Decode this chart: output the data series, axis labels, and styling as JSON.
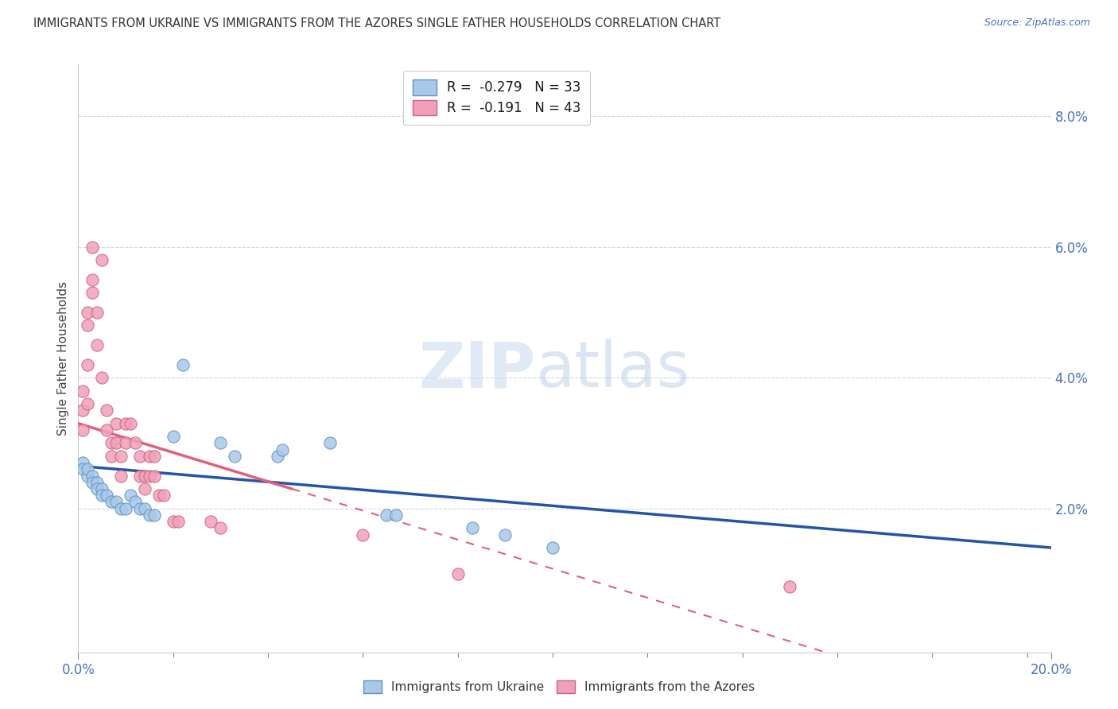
{
  "title": "IMMIGRANTS FROM UKRAINE VS IMMIGRANTS FROM THE AZORES SINGLE FATHER HOUSEHOLDS CORRELATION CHART",
  "source": "Source: ZipAtlas.com",
  "ylabel": "Single Father Households",
  "legend_ukraine": "R =  -0.279   N = 33",
  "legend_azores": "R =  -0.191   N = 43",
  "watermark_zip": "ZIP",
  "watermark_atlas": "atlas",
  "ukraine_color": "#a8c8e8",
  "ukraine_edge": "#6090c8",
  "azores_color": "#f0a0b8",
  "azores_edge": "#d06080",
  "ukraine_line_color": "#2255aa",
  "azores_line_color": "#e06080",
  "background_color": "#ffffff",
  "ukraine_scatter": [
    [
      0.001,
      0.027
    ],
    [
      0.001,
      0.026
    ],
    [
      0.002,
      0.025
    ],
    [
      0.002,
      0.026
    ],
    [
      0.003,
      0.025
    ],
    [
      0.003,
      0.024
    ],
    [
      0.004,
      0.024
    ],
    [
      0.004,
      0.023
    ],
    [
      0.005,
      0.023
    ],
    [
      0.005,
      0.022
    ],
    [
      0.006,
      0.022
    ],
    [
      0.007,
      0.021
    ],
    [
      0.008,
      0.021
    ],
    [
      0.009,
      0.02
    ],
    [
      0.01,
      0.02
    ],
    [
      0.011,
      0.022
    ],
    [
      0.012,
      0.021
    ],
    [
      0.013,
      0.02
    ],
    [
      0.014,
      0.02
    ],
    [
      0.015,
      0.019
    ],
    [
      0.016,
      0.019
    ],
    [
      0.02,
      0.031
    ],
    [
      0.022,
      0.042
    ],
    [
      0.03,
      0.03
    ],
    [
      0.033,
      0.028
    ],
    [
      0.042,
      0.028
    ],
    [
      0.043,
      0.029
    ],
    [
      0.053,
      0.03
    ],
    [
      0.065,
      0.019
    ],
    [
      0.067,
      0.019
    ],
    [
      0.083,
      0.017
    ],
    [
      0.09,
      0.016
    ],
    [
      0.1,
      0.014
    ]
  ],
  "azores_scatter": [
    [
      0.001,
      0.035
    ],
    [
      0.001,
      0.038
    ],
    [
      0.001,
      0.032
    ],
    [
      0.002,
      0.05
    ],
    [
      0.002,
      0.042
    ],
    [
      0.002,
      0.048
    ],
    [
      0.002,
      0.036
    ],
    [
      0.003,
      0.055
    ],
    [
      0.003,
      0.06
    ],
    [
      0.003,
      0.053
    ],
    [
      0.004,
      0.045
    ],
    [
      0.004,
      0.05
    ],
    [
      0.005,
      0.058
    ],
    [
      0.005,
      0.04
    ],
    [
      0.006,
      0.035
    ],
    [
      0.006,
      0.032
    ],
    [
      0.007,
      0.03
    ],
    [
      0.007,
      0.028
    ],
    [
      0.008,
      0.033
    ],
    [
      0.008,
      0.03
    ],
    [
      0.009,
      0.028
    ],
    [
      0.009,
      0.025
    ],
    [
      0.01,
      0.033
    ],
    [
      0.01,
      0.03
    ],
    [
      0.011,
      0.033
    ],
    [
      0.012,
      0.03
    ],
    [
      0.013,
      0.025
    ],
    [
      0.013,
      0.028
    ],
    [
      0.014,
      0.025
    ],
    [
      0.014,
      0.023
    ],
    [
      0.015,
      0.028
    ],
    [
      0.015,
      0.025
    ],
    [
      0.016,
      0.028
    ],
    [
      0.016,
      0.025
    ],
    [
      0.017,
      0.022
    ],
    [
      0.018,
      0.022
    ],
    [
      0.02,
      0.018
    ],
    [
      0.021,
      0.018
    ],
    [
      0.028,
      0.018
    ],
    [
      0.03,
      0.017
    ],
    [
      0.06,
      0.016
    ],
    [
      0.08,
      0.01
    ],
    [
      0.15,
      0.008
    ]
  ],
  "xlim": [
    0.0,
    0.205
  ],
  "ylim": [
    -0.002,
    0.088
  ],
  "yticks_right": [
    0.02,
    0.04,
    0.06,
    0.08
  ],
  "figsize": [
    14.06,
    8.92
  ],
  "dpi": 100
}
